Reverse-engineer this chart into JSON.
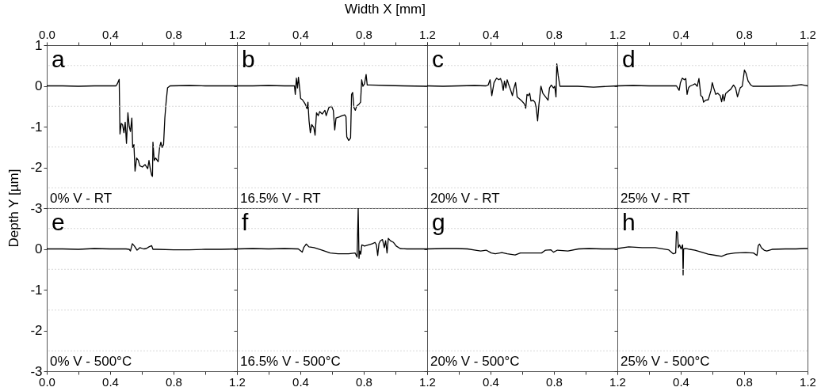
{
  "chart_data": [
    {
      "type": "line",
      "ylabel": "Depth  Y  [µm]",
      "annotations": [
        "a",
        "0% V - RT"
      ],
      "xlim": [
        0,
        1.2
      ],
      "xticks": [
        {
          "value": 0,
          "label": "0.0"
        },
        {
          "value": 0.2,
          "label": null
        },
        0.4,
        {
          "value": 0.6,
          "label": null
        },
        0.8,
        {
          "value": 1,
          "label": null
        },
        1.2
      ],
      "ylim": [
        -3,
        1
      ],
      "yticks": [
        1,
        {
          "value": 0.5,
          "label": null
        },
        0,
        {
          "value": -0.5,
          "label": null
        },
        -1,
        {
          "value": -1.5,
          "label": null
        },
        -2,
        {
          "value": -2.5,
          "label": null
        },
        -3
      ],
      "grid": "y",
      "x": [
        0,
        0.1,
        0.2,
        0.3,
        0.4,
        0.437,
        0.445,
        0.457,
        0.462,
        0.47,
        0.478,
        0.487,
        0.495,
        0.503,
        0.512,
        0.52,
        0.528,
        0.537,
        0.542,
        0.55,
        0.557,
        0.567,
        0.578,
        0.587,
        0.603,
        0.62,
        0.637,
        0.645,
        0.653,
        0.662,
        0.667,
        0.67,
        0.678,
        0.687,
        0.703,
        0.712,
        0.72,
        0.728,
        0.737,
        0.745,
        0.753,
        0.762,
        0.778,
        0.9,
        1.0,
        1.1,
        1.2
      ],
      "series": [
        {
          "color": "#000000",
          "values": [
            0,
            0,
            -0.01,
            0,
            0,
            0,
            0.05,
            0.16,
            -1.18,
            -0.92,
            -0.95,
            -1.15,
            -0.89,
            -1.41,
            -0.66,
            -0.99,
            -1.12,
            -0.79,
            -1.51,
            -1.44,
            -2.09,
            -1.77,
            -1.83,
            -1.96,
            -1.99,
            -1.93,
            -2.03,
            -1.83,
            -2.03,
            -2.19,
            -2.22,
            -1.38,
            -1.83,
            -1.77,
            -1.86,
            -1.51,
            -1.38,
            -1.51,
            -1.44,
            -0.79,
            -0.4,
            -0.05,
            0,
            0.01,
            0,
            0,
            0
          ]
        }
      ]
    },
    {
      "type": "line",
      "xlabel": "Width  X  [mm]",
      "annotations": [
        "b",
        "16.5% V - RT"
      ],
      "xlim": [
        0,
        1.2
      ],
      "xticks": [
        {
          "value": 0,
          "label": null
        },
        {
          "value": 0.2,
          "label": null
        },
        0.4,
        {
          "value": 0.6,
          "label": null
        },
        0.8,
        {
          "value": 1,
          "label": null
        },
        1.2
      ],
      "ylim": [
        -3,
        1
      ],
      "yticks": [
        1,
        {
          "value": 0.5,
          "label": null
        },
        0,
        {
          "value": -0.5,
          "label": null
        },
        -1,
        {
          "value": -1.5,
          "label": null
        },
        -2,
        {
          "value": -2.5,
          "label": null
        },
        -3
      ],
      "grid": "y",
      "tick_labels": "x",
      "x": [
        0,
        0.1,
        0.2,
        0.3,
        0.363,
        0.368,
        0.375,
        0.382,
        0.388,
        0.397,
        0.402,
        0.413,
        0.43,
        0.442,
        0.448,
        0.455,
        0.463,
        0.472,
        0.485,
        0.493,
        0.502,
        0.513,
        0.522,
        0.538,
        0.555,
        0.563,
        0.58,
        0.597,
        0.608,
        0.617,
        0.625,
        0.647,
        0.663,
        0.68,
        0.688,
        0.693,
        0.705,
        0.717,
        0.723,
        0.73,
        0.738,
        0.747,
        0.755,
        0.772,
        0.78,
        0.787,
        0.795,
        0.805,
        0.815,
        0.822,
        0.838,
        0.95,
        1.05,
        1.2
      ],
      "series": [
        {
          "color": "#000000",
          "values": [
            0,
            0,
            0.01,
            0,
            0,
            -0.21,
            0.19,
            -0.05,
            0.21,
            -0.11,
            -0.31,
            -0.34,
            -0.44,
            -0.56,
            -0.4,
            -0.86,
            -1.15,
            -0.95,
            -1.02,
            -1.21,
            -0.66,
            -0.73,
            -0.63,
            -0.69,
            -0.6,
            -0.73,
            -0.53,
            -0.5,
            -0.6,
            -1.08,
            -0.79,
            -0.76,
            -0.73,
            -0.71,
            -0.76,
            -1.25,
            -1.34,
            -1.28,
            -0.21,
            -0.16,
            -0.53,
            -0.6,
            -0.5,
            -0.44,
            -0.4,
            0.15,
            -0.01,
            0.05,
            0.28,
            0.02,
            0.02,
            0.01,
            0,
            -0.01
          ]
        }
      ]
    },
    {
      "type": "line",
      "annotations": [
        "c",
        "20% V - RT"
      ],
      "xlim": [
        0,
        1.2
      ],
      "xticks": [
        {
          "value": 0,
          "label": null
        },
        {
          "value": 0.2,
          "label": null
        },
        0.4,
        {
          "value": 0.6,
          "label": null
        },
        0.8,
        {
          "value": 1,
          "label": null
        },
        1.2
      ],
      "ylim": [
        -3,
        1
      ],
      "yticks": [
        1,
        {
          "value": 0.5,
          "label": null
        },
        0,
        {
          "value": -0.5,
          "label": null
        },
        -1,
        {
          "value": -1.5,
          "label": null
        },
        -2,
        {
          "value": -2.5,
          "label": null
        },
        -3
      ],
      "grid": "y",
      "tick_labels": "x",
      "x": [
        0,
        0.1,
        0.2,
        0.3,
        0.372,
        0.385,
        0.397,
        0.408,
        0.422,
        0.438,
        0.452,
        0.463,
        0.472,
        0.48,
        0.488,
        0.497,
        0.505,
        0.513,
        0.522,
        0.53,
        0.538,
        0.548,
        0.558,
        0.568,
        0.58,
        0.597,
        0.613,
        0.622,
        0.63,
        0.638,
        0.647,
        0.655,
        0.668,
        0.68,
        0.688,
        0.697,
        0.705,
        0.718,
        0.73,
        0.747,
        0.763,
        0.772,
        0.783,
        0.797,
        0.805,
        0.813,
        0.818,
        0.827,
        0.838,
        0.95,
        1.05,
        1.2
      ],
      "series": [
        {
          "color": "#000000",
          "values": [
            0,
            -0.01,
            0,
            0.01,
            0,
            0.02,
            0.15,
            -0.24,
            0.08,
            0.19,
            0.15,
            0.18,
            0.08,
            -0.11,
            0.12,
            -0.05,
            0.15,
            0.05,
            -0.05,
            -0.14,
            -0.24,
            -0.05,
            0.08,
            -0.27,
            -0.31,
            -0.37,
            -0.44,
            -0.55,
            -0.21,
            -0.24,
            -0.18,
            -0.37,
            -0.35,
            -0.4,
            -0.53,
            -0.86,
            -0.47,
            -0.01,
            -0.18,
            -0.27,
            -0.35,
            -0.05,
            0.02,
            -0.05,
            -0.01,
            -0.27,
            0.54,
            0.25,
            -0.01,
            -0.01,
            -0.03,
            0
          ]
        }
      ]
    },
    {
      "type": "line",
      "annotations": [
        "d",
        "25% V - RT"
      ],
      "xlim": [
        0,
        1.2
      ],
      "xticks": [
        {
          "value": 0,
          "label": null
        },
        {
          "value": 0.2,
          "label": null
        },
        0.4,
        {
          "value": 0.6,
          "label": null
        },
        0.8,
        {
          "value": 1,
          "label": null
        },
        1.2
      ],
      "ylim": [
        -3,
        1
      ],
      "yticks": [
        1,
        {
          "value": 0.5,
          "label": null
        },
        0,
        {
          "value": -0.5,
          "label": null
        },
        -1,
        {
          "value": -1.5,
          "label": null
        },
        -2,
        {
          "value": -2.5,
          "label": null
        },
        -3
      ],
      "grid": "y",
      "tick_labels": "x",
      "x": [
        0,
        0.1,
        0.2,
        0.3,
        0.373,
        0.39,
        0.398,
        0.41,
        0.423,
        0.432,
        0.44,
        0.449,
        0.457,
        0.474,
        0.49,
        0.504,
        0.515,
        0.527,
        0.537,
        0.544,
        0.557,
        0.574,
        0.591,
        0.599,
        0.608,
        0.621,
        0.633,
        0.649,
        0.658,
        0.666,
        0.674,
        0.683,
        0.7,
        0.716,
        0.733,
        0.746,
        0.758,
        0.775,
        0.788,
        0.795,
        0.802,
        0.812,
        0.825,
        0.842,
        0.855,
        0.95,
        1.1,
        1.16,
        1.2
      ],
      "series": [
        {
          "color": "#000000",
          "values": [
            0,
            0.01,
            0,
            0,
            0,
            -0.11,
            0.08,
            0.19,
            0.15,
            0.18,
            -0.21,
            -0.05,
            -0.01,
            0.02,
            0.05,
            -0.01,
            0.18,
            -0.24,
            -0.27,
            -0.4,
            -0.35,
            -0.34,
            -0.11,
            0.08,
            -0.05,
            -0.21,
            -0.18,
            -0.24,
            -0.39,
            -0.21,
            -0.37,
            -0.19,
            -0.13,
            -0.08,
            0.02,
            -0.05,
            -0.27,
            -0.05,
            -0.01,
            0.18,
            0.39,
            0.31,
            0.12,
            0.02,
            -0.01,
            -0.01,
            0,
            0.03,
            0
          ]
        }
      ]
    },
    {
      "type": "line",
      "annotations": [
        "e",
        "0% V - 500°C"
      ],
      "xlim": [
        0,
        1.2
      ],
      "xticks": [
        {
          "value": 0,
          "label": "0.0"
        },
        {
          "value": 0.2,
          "label": null
        },
        0.4,
        {
          "value": 0.6,
          "label": null
        },
        0.8,
        {
          "value": 1,
          "label": null
        },
        1.2
      ],
      "ylim": [
        -3,
        1
      ],
      "yticks": [
        {
          "value": 1,
          "label": null
        },
        {
          "value": 0.5,
          "label": null
        },
        0,
        {
          "value": -0.5,
          "label": null
        },
        -1,
        {
          "value": -1.5,
          "label": null
        },
        -2,
        {
          "value": -2.5,
          "label": null
        },
        -3
      ],
      "grid": "y",
      "x": [
        0,
        0.1,
        0.2,
        0.3,
        0.4,
        0.5,
        0.52,
        0.528,
        0.54,
        0.553,
        0.57,
        0.587,
        0.612,
        0.628,
        0.645,
        0.662,
        0.67,
        0.695,
        0.8,
        0.9,
        1.0,
        1.1,
        1.2
      ],
      "series": [
        {
          "color": "#000000",
          "values": [
            0,
            0,
            -0.01,
            0.01,
            0,
            0,
            -0.01,
            -0.05,
            0.13,
            0.07,
            -0.03,
            0.03,
            0,
            0.01,
            0.05,
            0.08,
            -0.01,
            -0.01,
            -0.02,
            -0.02,
            -0.01,
            -0.01,
            0
          ]
        }
      ]
    },
    {
      "type": "line",
      "annotations": [
        "f",
        "16.5% V - 500°C"
      ],
      "xlim": [
        0,
        1.2
      ],
      "xticks": [
        {
          "value": 0,
          "label": null
        },
        {
          "value": 0.2,
          "label": null
        },
        0.4,
        {
          "value": 0.6,
          "label": null
        },
        0.8,
        {
          "value": 1,
          "label": null
        },
        1.2
      ],
      "ylim": [
        -3,
        1
      ],
      "yticks": [
        {
          "value": 1,
          "label": null
        },
        {
          "value": 0.5,
          "label": null
        },
        0,
        {
          "value": -0.5,
          "label": null
        },
        -1,
        {
          "value": -1.5,
          "label": null
        },
        -2,
        {
          "value": -2.5,
          "label": null
        },
        -3
      ],
      "grid": "y",
      "tick_labels": "x",
      "x": [
        0,
        0.1,
        0.2,
        0.3,
        0.387,
        0.412,
        0.421,
        0.437,
        0.454,
        0.487,
        0.538,
        0.588,
        0.638,
        0.705,
        0.746,
        0.758,
        0.765,
        0.77,
        0.775,
        0.781,
        0.788,
        0.805,
        0.83,
        0.855,
        0.871,
        0.88,
        0.888,
        0.896,
        0.905,
        0.918,
        0.93,
        0.938,
        0.947,
        0.955,
        0.968,
        0.988,
        1.005,
        1.03,
        1.072,
        1.2
      ],
      "series": [
        {
          "color": "#000000",
          "values": [
            0,
            0.01,
            0,
            0.01,
            0,
            -0.08,
            0.03,
            0.12,
            0.05,
            0.03,
            -0.03,
            -0.1,
            -0.12,
            -0.12,
            -0.1,
            -0.2,
            1.0,
            -0.23,
            -0.05,
            -0.13,
            0.1,
            0.07,
            0.1,
            0.13,
            0.16,
            0.1,
            -0.16,
            0.13,
            0.2,
            0.23,
            0.03,
            0.2,
            -0.1,
            0.26,
            0.2,
            0.16,
            0.07,
            0.01,
            0,
            0
          ]
        }
      ]
    },
    {
      "type": "line",
      "annotations": [
        "g",
        "20% V - 500°C"
      ],
      "xlim": [
        0,
        1.2
      ],
      "xticks": [
        {
          "value": 0,
          "label": null
        },
        {
          "value": 0.2,
          "label": null
        },
        0.4,
        {
          "value": 0.6,
          "label": null
        },
        0.8,
        {
          "value": 1,
          "label": null
        },
        1.2
      ],
      "ylim": [
        -3,
        1
      ],
      "yticks": [
        {
          "value": 1,
          "label": null
        },
        {
          "value": 0.5,
          "label": null
        },
        0,
        {
          "value": -0.5,
          "label": null
        },
        -1,
        {
          "value": -1.5,
          "label": null
        },
        -2,
        {
          "value": -2.5,
          "label": null
        },
        -3
      ],
      "grid": "y",
      "tick_labels": "x",
      "x": [
        0,
        0.105,
        0.188,
        0.255,
        0.305,
        0.338,
        0.372,
        0.405,
        0.43,
        0.472,
        0.505,
        0.555,
        0.588,
        0.638,
        0.688,
        0.722,
        0.747,
        0.78,
        0.797,
        0.822,
        0.888,
        0.955,
        1.022,
        1.105,
        1.2
      ],
      "series": [
        {
          "color": "#000000",
          "values": [
            0,
            0.01,
            0.01,
            0,
            -0.03,
            -0.05,
            -0.03,
            -0.1,
            -0.12,
            -0.09,
            -0.12,
            -0.15,
            -0.1,
            -0.1,
            -0.1,
            -0.1,
            -0.03,
            -0.02,
            -0.08,
            -0.03,
            -0.05,
            0,
            0.01,
            0,
            0
          ]
        }
      ]
    },
    {
      "type": "line",
      "annotations": [
        "h",
        "25% V - 500°C"
      ],
      "xlim": [
        0,
        1.2
      ],
      "xticks": [
        {
          "value": 0,
          "label": null
        },
        {
          "value": 0.2,
          "label": null
        },
        0.4,
        {
          "value": 0.6,
          "label": null
        },
        0.8,
        {
          "value": 1,
          "label": null
        },
        1.2
      ],
      "ylim": [
        -3,
        1
      ],
      "yticks": [
        {
          "value": 1,
          "label": null
        },
        {
          "value": 0.5,
          "label": null
        },
        0,
        {
          "value": -0.5,
          "label": null
        },
        -1,
        {
          "value": -1.5,
          "label": null
        },
        -2,
        {
          "value": -2.5,
          "label": null
        },
        -3
      ],
      "grid": "y",
      "tick_labels": "x",
      "x": [
        0,
        0.072,
        0.156,
        0.239,
        0.323,
        0.353,
        0.368,
        0.373,
        0.38,
        0.385,
        0.393,
        0.402,
        0.412,
        0.415,
        0.418,
        0.432,
        0.457,
        0.49,
        0.524,
        0.574,
        0.624,
        0.658,
        0.691,
        0.742,
        0.809,
        0.859,
        0.881,
        0.889,
        0.897,
        0.909,
        0.926,
        0.943,
        0.976,
        1.06,
        1.127,
        1.177,
        1.2
      ],
      "series": [
        {
          "color": "#000000",
          "values": [
            0.01,
            0.05,
            0.03,
            0.03,
            -0.02,
            -0.12,
            -0.1,
            0.43,
            0.39,
            0.03,
            0.1,
            0,
            0.1,
            -0.64,
            0,
            0.01,
            -0.01,
            -0.03,
            -0.07,
            -0.13,
            -0.16,
            -0.18,
            -0.13,
            -0.1,
            -0.09,
            -0.1,
            -0.16,
            0.08,
            0.12,
            0.03,
            -0.03,
            -0.05,
            -0.01,
            0,
            0,
            0.01,
            0.01
          ]
        }
      ]
    }
  ]
}
